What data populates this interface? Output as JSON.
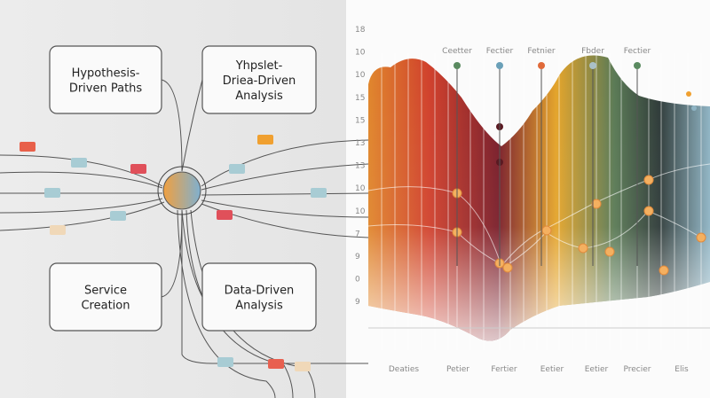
{
  "nodes": [
    {
      "lines": [
        "Hypothesis-",
        "Driven  Paths"
      ]
    },
    {
      "lines": [
        "Yhpslet-",
        "Driea-Driven",
        "Analysis"
      ]
    },
    {
      "lines": [
        "Service",
        "Creation"
      ]
    },
    {
      "lines": [
        "Data-Driven",
        "Analysis"
      ]
    }
  ],
  "chart": {
    "y_labels": [
      "18",
      "10",
      "10",
      "15",
      "15",
      "13",
      "13",
      "10",
      "10",
      "7",
      "9",
      "0",
      "9"
    ],
    "top_labels": [
      "Ceetter",
      "Fectier",
      "Fetnier",
      "Fbder",
      "Fectier"
    ],
    "bottom_labels": [
      "Deaties",
      "Petier",
      "Fertier",
      "Eetier",
      "Eetier",
      "Precier",
      "Elis"
    ]
  }
}
